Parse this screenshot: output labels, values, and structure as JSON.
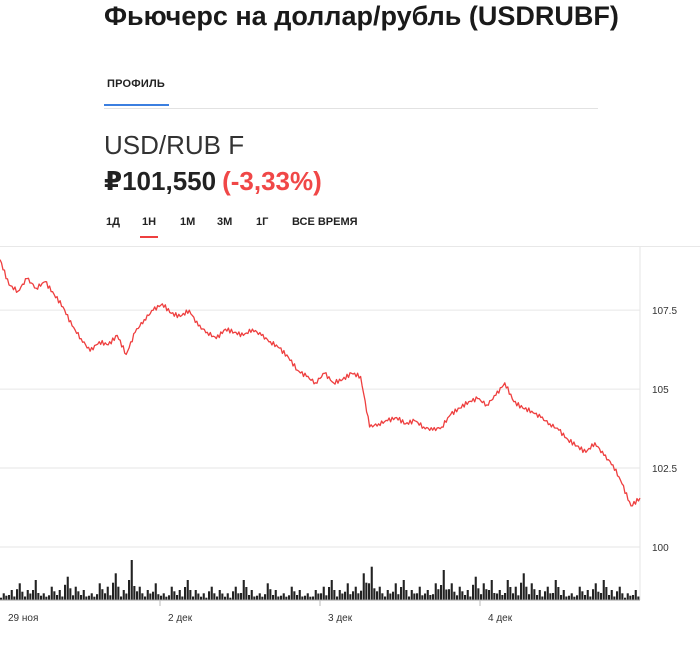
{
  "header": {
    "title": "Фьючерс на доллар/рубль (USDRUBF)"
  },
  "tabs": [
    {
      "label": "ПРОФИЛЬ",
      "active": true
    }
  ],
  "quote": {
    "ticker": "USD/RUB F",
    "price": "₽101,550",
    "change": "(-3,33%)"
  },
  "ranges": [
    {
      "label": "1Д",
      "active": false
    },
    {
      "label": "1Н",
      "active": true
    },
    {
      "label": "1М",
      "active": false
    },
    {
      "label": "3М",
      "active": false
    },
    {
      "label": "1Г",
      "active": false
    },
    {
      "label": "ВСЕ ВРЕМЯ",
      "active": false
    }
  ],
  "colors": {
    "line": "#ee3f3f",
    "tab_underline": "#3b7fe0",
    "volume": "#222222"
  },
  "chart_data": {
    "type": "line",
    "title": "",
    "xlabel": "",
    "ylabel": "",
    "x_ticks": [
      "29 ноя",
      "2 дек",
      "3 дек",
      "4 дек"
    ],
    "y_ticks": [
      100,
      102.5,
      105,
      107.5
    ],
    "y_tick_labels": [
      "100",
      "102.5",
      "105",
      "107.5"
    ],
    "ylim": [
      100,
      109.5
    ],
    "grid": true,
    "legend": "none",
    "series": [
      {
        "values": [
          109.1,
          108.3,
          108.1,
          108.5,
          108.2,
          108.4,
          108.0,
          107.6,
          107.0,
          106.6,
          106.2,
          106.5,
          106.4,
          106.7,
          106.1,
          106.8,
          107.2,
          107.5,
          107.7,
          107.4,
          107.3,
          107.5,
          107.0,
          106.8,
          106.6,
          106.9,
          106.8,
          106.7,
          106.9,
          106.7,
          106.5,
          106.3,
          106.0,
          105.6,
          105.4,
          105.2,
          105.5,
          105.2,
          105.3,
          105.5,
          105.4,
          103.8,
          103.9,
          104.0,
          104.1,
          103.9,
          104.0,
          103.8,
          103.7,
          103.8,
          104.2,
          104.4,
          104.6,
          104.7,
          104.5,
          104.8,
          105.2,
          104.6,
          104.4,
          104.3,
          104.1,
          103.9,
          103.7,
          103.4,
          103.2,
          103.0,
          103.3,
          102.9,
          102.6,
          102.0,
          101.3,
          101.55
        ]
      }
    ],
    "volume": {
      "note": "relative volume bars under the price line (arbitrary units)",
      "values": [
        2,
        3,
        5,
        3,
        6,
        2,
        4,
        3,
        7,
        4,
        3,
        2,
        5,
        4,
        8,
        3,
        12,
        4,
        3,
        5,
        2,
        4,
        3,
        6,
        3,
        2,
        4,
        3,
        2,
        4,
        6,
        3,
        2,
        5,
        3,
        2,
        4,
        3,
        2,
        3,
        4,
        6,
        3,
        5,
        4,
        8,
        10,
        4,
        3,
        5,
        6,
        3,
        4,
        3,
        5,
        9,
        5,
        4,
        3,
        7,
        5,
        6,
        3,
        6,
        4,
        8,
        5,
        3,
        4,
        6,
        3,
        2,
        4,
        3,
        5,
        6,
        3,
        4,
        2,
        3
      ]
    }
  }
}
